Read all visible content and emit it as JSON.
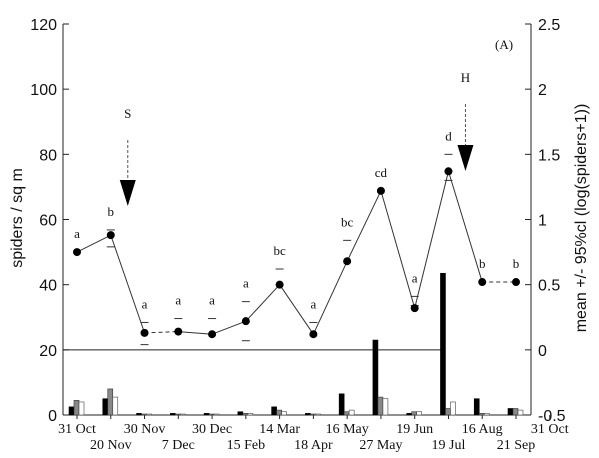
{
  "chart_data": {
    "type": "bar+line",
    "panel_label": "(A)",
    "left_axis": {
      "label": "spiders / sq m",
      "ylim": [
        0,
        120
      ],
      "ticks": [
        "0",
        "20",
        "40",
        "60",
        "80",
        "100",
        "120"
      ]
    },
    "right_axis": {
      "label": "mean +/- 95%cl (log(spiders+1))",
      "ylim": [
        -0.5,
        2.5
      ],
      "ticks": [
        "-0.5",
        "0",
        "0.5",
        "1",
        "1.5",
        "2",
        "2.5"
      ]
    },
    "x_labels_row1": [
      "31 Oct",
      "30 Nov",
      "30 Dec",
      "14 Mar",
      "16 May",
      "19 Jun",
      "16 Aug",
      "31 Oct"
    ],
    "x_labels_row2": [
      "20 Nov",
      "7 Dec",
      "15 Feb",
      "18 Apr",
      "27 May",
      "19 Jul",
      "21 Sep"
    ],
    "line_series": {
      "dates": [
        "31 Oct",
        "20 Nov",
        "30 Nov",
        "7 Dec",
        "30 Dec",
        "15 Feb",
        "14 Mar",
        "18 Apr",
        "16 May",
        "19 Jun",
        "19 Jul",
        "16 Aug",
        "21 Sep",
        "31 Oct"
      ],
      "mean": [
        0.75,
        0.88,
        0.13,
        0.14,
        0.12,
        0.22,
        0.5,
        0.12,
        0.68,
        1.22,
        0.32,
        1.37,
        0.52,
        0.52
      ],
      "ci_upper": [
        null,
        0.92,
        0.21,
        0.24,
        0.24,
        0.37,
        0.62,
        0.21,
        0.84,
        null,
        0.41,
        1.5,
        null,
        null
      ],
      "ci_lower": [
        null,
        0.79,
        0.04,
        null,
        null,
        0.07,
        null,
        null,
        null,
        null,
        0.34,
        1.3,
        null,
        null
      ],
      "letters": [
        "a",
        "b",
        "a",
        "a",
        "a",
        "a",
        "bc",
        "a",
        "bc",
        "cd",
        "a",
        "d",
        "b",
        "b"
      ],
      "dashed_segments": [
        [
          2,
          3
        ],
        [
          12,
          13
        ]
      ]
    },
    "bar_series": {
      "dates": [
        "31 Oct",
        "20 Nov",
        "30 Nov",
        "7 Dec",
        "30 Dec",
        "15 Feb",
        "14 Mar",
        "18 Apr",
        "16 May",
        "19 Jun",
        "19 Jul",
        "16 Aug",
        "21 Sep",
        "31 Oct"
      ],
      "black": [
        2.5,
        5,
        0.5,
        0.5,
        0.5,
        1,
        2.5,
        0.5,
        6.5,
        23,
        0.5,
        43.5,
        5,
        2
      ],
      "gray": [
        4.5,
        8,
        0.3,
        0.3,
        0.3,
        0.5,
        1.5,
        0.3,
        1,
        5.5,
        1,
        2,
        0.5,
        2
      ],
      "white": [
        4,
        5.5,
        0.3,
        0.3,
        0.3,
        0.5,
        1,
        0.3,
        1.5,
        5,
        1,
        4,
        0.5,
        1.5
      ]
    },
    "annotations": [
      {
        "text": "S",
        "date": "20 Nov",
        "arrow": "down"
      },
      {
        "text": "H",
        "date": "16 Aug",
        "arrow": "down"
      }
    ],
    "reference_line": {
      "right_axis_value": 0
    }
  }
}
